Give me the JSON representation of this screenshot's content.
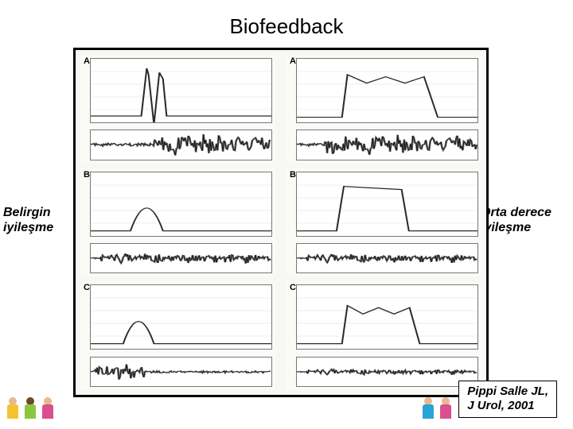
{
  "title": "Biofeedback",
  "left_label": "Belirgin iyileşme",
  "right_label": "Orta derece iyileşme",
  "citation_line1": "Pippi Salle JL,",
  "citation_line2": "J Urol, 2001",
  "figure": {
    "border_color": "#000000",
    "bg_color": "#f7f7f4",
    "columns": 2,
    "rows": 3,
    "panels": [
      {
        "label": "A",
        "flow": {
          "type": "line",
          "peak_start": 0.28,
          "peak_end": 0.42,
          "peak_height": 0.85,
          "baseline": 0.1,
          "shape": "interrupted",
          "color": "#2a2a2a"
        },
        "emg": {
          "type": "dense",
          "burst_start": 0.35,
          "burst_end": 0.95,
          "amplitude": 0.9,
          "color": "#1a1a1a"
        }
      },
      {
        "label": "A",
        "flow": {
          "type": "line",
          "peak_start": 0.25,
          "peak_end": 0.78,
          "peak_height": 0.75,
          "baseline": 0.08,
          "shape": "plateau-undulating",
          "color": "#2a2a2a"
        },
        "emg": {
          "type": "dense",
          "burst_start": 0.15,
          "burst_end": 0.92,
          "amplitude": 0.85,
          "color": "#1a1a1a"
        }
      },
      {
        "label": "B",
        "flow": {
          "type": "line",
          "peak_start": 0.22,
          "peak_end": 0.4,
          "peak_height": 0.8,
          "baseline": 0.08,
          "shape": "bell",
          "color": "#2a2a2a"
        },
        "emg": {
          "type": "dense",
          "burst_start": 0.05,
          "burst_end": 0.95,
          "amplitude": 0.45,
          "color": "#1a1a1a"
        }
      },
      {
        "label": "B",
        "flow": {
          "type": "line",
          "peak_start": 0.22,
          "peak_end": 0.62,
          "peak_height": 0.78,
          "baseline": 0.08,
          "shape": "plateau",
          "color": "#2a2a2a"
        },
        "emg": {
          "type": "dense",
          "burst_start": 0.05,
          "burst_end": 0.95,
          "amplitude": 0.4,
          "color": "#1a1a1a"
        }
      },
      {
        "label": "C",
        "flow": {
          "type": "line",
          "peak_start": 0.18,
          "peak_end": 0.35,
          "peak_height": 0.78,
          "baseline": 0.08,
          "shape": "bell",
          "color": "#2a2a2a"
        },
        "emg": {
          "type": "dense",
          "burst_start": 0.02,
          "burst_end": 0.3,
          "amplitude": 0.7,
          "tail_amplitude": 0.15,
          "color": "#1a1a1a"
        }
      },
      {
        "label": "C",
        "flow": {
          "type": "line",
          "peak_start": 0.25,
          "peak_end": 0.68,
          "peak_height": 0.68,
          "baseline": 0.08,
          "shape": "plateau-undulating",
          "color": "#2a2a2a"
        },
        "emg": {
          "type": "dense",
          "burst_start": 0.05,
          "burst_end": 0.95,
          "amplitude": 0.25,
          "color": "#1a1a1a"
        }
      }
    ]
  },
  "decor": {
    "kids_left": [
      {
        "head": "#e8b890",
        "body": "#f4c430"
      },
      {
        "head": "#6b4a2e",
        "body": "#8cc63f"
      },
      {
        "head": "#e8b890",
        "body": "#d94f8f"
      }
    ],
    "kids_right": [
      {
        "head": "#e8b890",
        "body": "#2aa3d9"
      },
      {
        "head": "#e8b890",
        "body": "#d94f8f"
      }
    ]
  }
}
